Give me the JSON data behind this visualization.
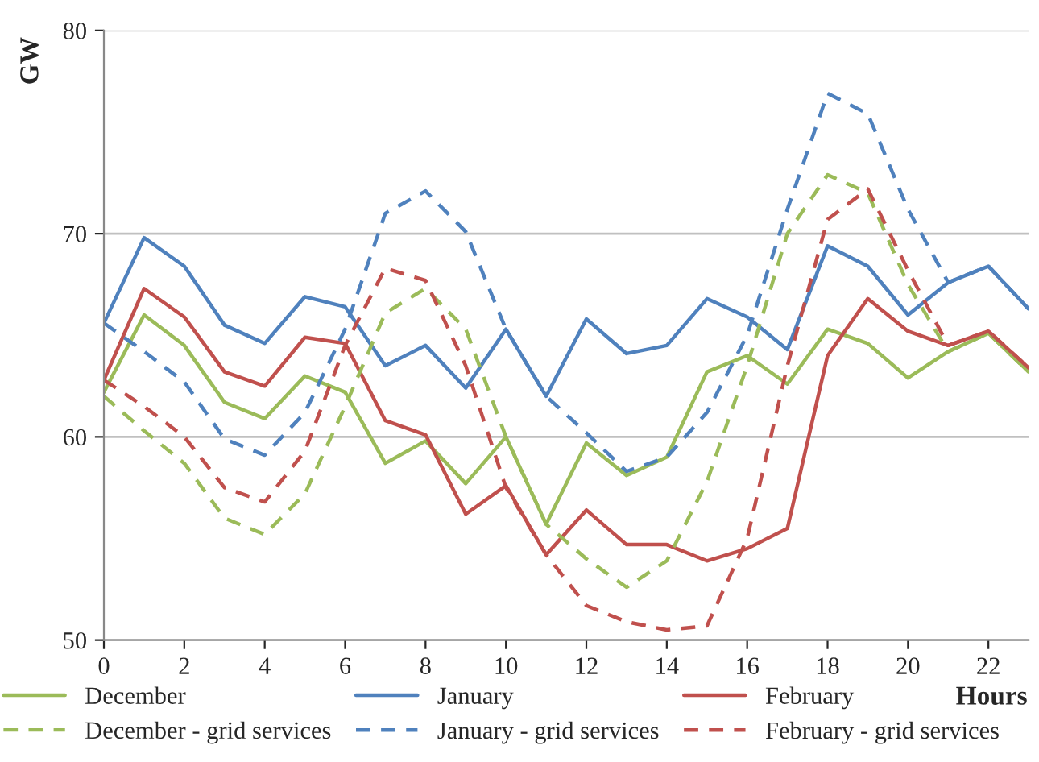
{
  "chart_data": {
    "type": "line",
    "ylabel": "GW",
    "xlabel": "Hours",
    "x": [
      0,
      1,
      2,
      3,
      4,
      5,
      6,
      7,
      8,
      9,
      10,
      11,
      12,
      13,
      14,
      15,
      16,
      17,
      18,
      19,
      20,
      21,
      22,
      23
    ],
    "xlim": [
      0,
      23
    ],
    "xticks": [
      0,
      2,
      4,
      6,
      8,
      10,
      12,
      14,
      16,
      18,
      20,
      22
    ],
    "ylim": [
      50,
      80
    ],
    "yticks": [
      50,
      60,
      70,
      80
    ],
    "grid": "y",
    "legend": "bottom",
    "series": [
      {
        "name": "December",
        "color": "#9bbb59",
        "line_style": "solid",
        "values": [
          62.2,
          66.0,
          64.5,
          61.7,
          60.9,
          63.0,
          62.2,
          58.7,
          59.8,
          57.7,
          60.0,
          55.7,
          59.7,
          58.1,
          59.0,
          63.2,
          64.0,
          62.6,
          65.3,
          64.6,
          62.9,
          64.2,
          65.1,
          63.2
        ]
      },
      {
        "name": "January",
        "color": "#4f81bd",
        "line_style": "solid",
        "values": [
          65.6,
          69.8,
          68.4,
          65.5,
          64.6,
          66.9,
          66.4,
          63.5,
          64.5,
          62.4,
          65.3,
          62.0,
          65.8,
          64.1,
          64.5,
          66.8,
          65.9,
          64.3,
          69.4,
          68.4,
          66.0,
          67.6,
          68.4,
          66.3
        ]
      },
      {
        "name": "February",
        "color": "#c0504d",
        "line_style": "solid",
        "values": [
          62.8,
          67.3,
          65.9,
          63.2,
          62.5,
          64.9,
          64.6,
          60.8,
          60.1,
          56.2,
          57.6,
          54.2,
          56.4,
          54.7,
          54.7,
          53.9,
          54.5,
          55.5,
          64.0,
          66.8,
          65.2,
          64.5,
          65.2,
          63.4
        ]
      },
      {
        "name": "December - grid services",
        "color": "#9bbb59",
        "line_style": "dashed",
        "values": [
          62.0,
          60.3,
          58.7,
          56.0,
          55.2,
          57.2,
          61.5,
          66.1,
          67.3,
          65.3,
          60.0,
          55.7,
          54.0,
          52.6,
          53.9,
          57.8,
          63.5,
          70.0,
          72.9,
          72.0,
          67.5,
          64.2,
          65.1,
          63.2
        ]
      },
      {
        "name": "January - grid services",
        "color": "#4f81bd",
        "line_style": "dashed",
        "values": [
          65.6,
          64.2,
          62.7,
          59.9,
          59.1,
          61.2,
          65.3,
          71.0,
          72.1,
          70.1,
          65.3,
          62.0,
          60.2,
          58.3,
          59.0,
          61.2,
          65.0,
          71.2,
          76.9,
          75.9,
          71.2,
          67.6,
          68.4,
          66.3
        ]
      },
      {
        "name": "February - grid services",
        "color": "#c0504d",
        "line_style": "dashed",
        "values": [
          62.8,
          61.5,
          60.0,
          57.5,
          56.8,
          59.3,
          64.5,
          68.3,
          67.7,
          63.5,
          57.5,
          54.2,
          51.7,
          50.9,
          50.5,
          50.7,
          55.0,
          63.5,
          70.7,
          72.2,
          68.2,
          64.5,
          65.2,
          63.4
        ]
      }
    ]
  }
}
